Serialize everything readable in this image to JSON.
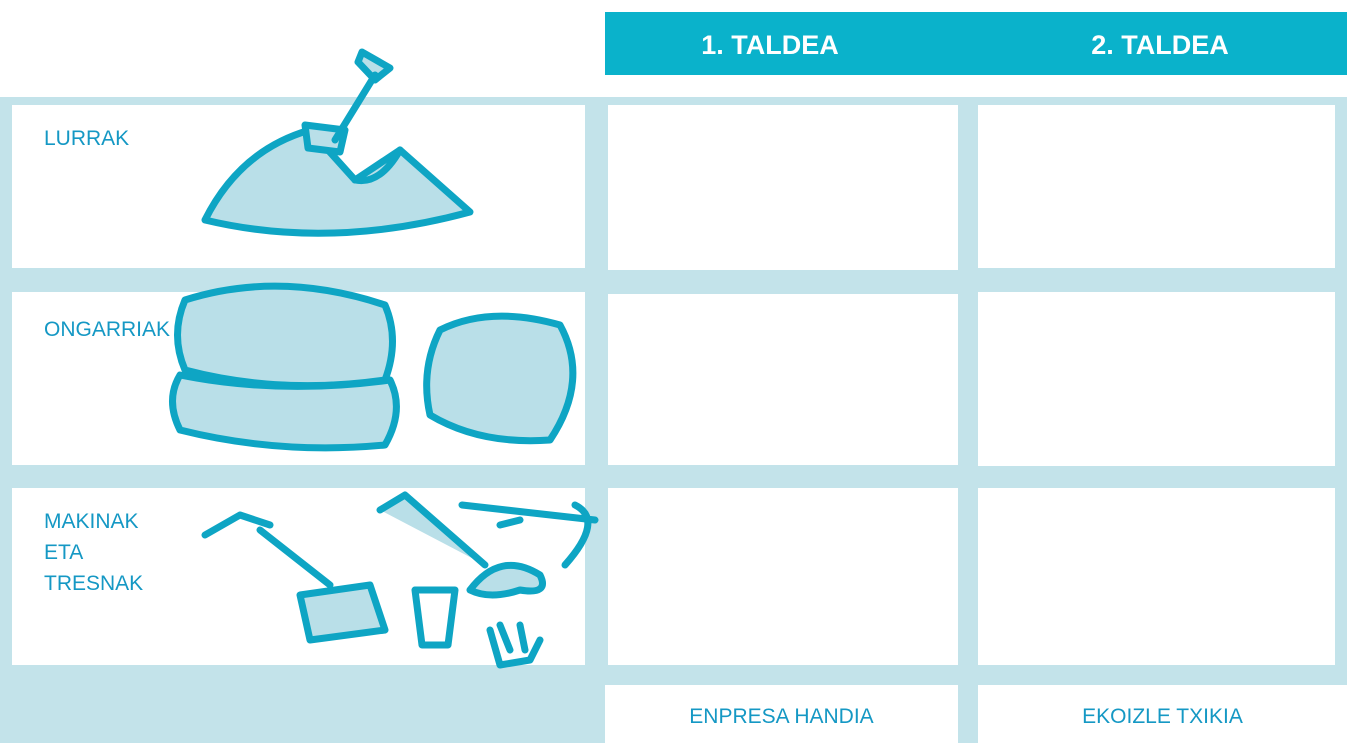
{
  "header": {
    "columns": [
      "1. TALDEA",
      "2. TALDEA"
    ]
  },
  "rows": [
    {
      "label": [
        "LURRAK"
      ]
    },
    {
      "label": [
        "ONGARRIAK"
      ]
    },
    {
      "label": [
        "MAKINAK",
        "ETA",
        "TRESNAK"
      ]
    }
  ],
  "footer": {
    "columns": [
      "ENPRESA HANDIA",
      "EKOIZLE TXIKIA"
    ]
  }
}
